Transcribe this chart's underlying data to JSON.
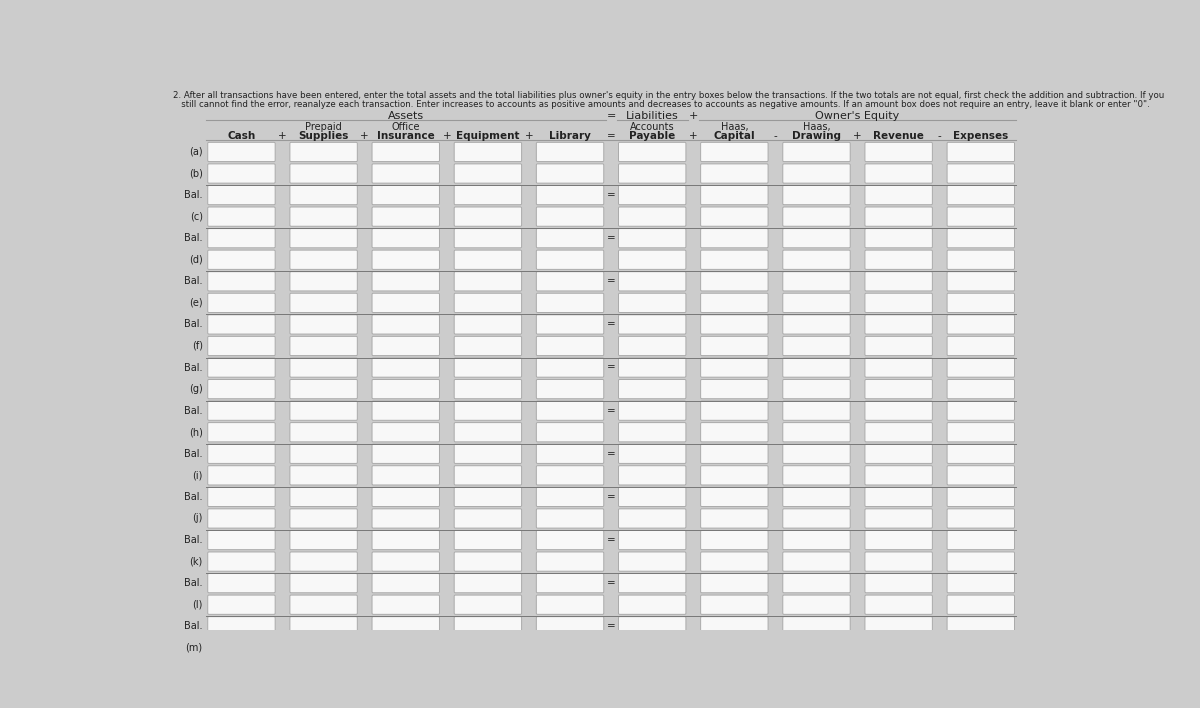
{
  "instruction_line1": "2. After all transactions have been entered, enter the total assets and the total liabilities plus owner's equity in the entry boxes below the transactions. If the two totals are not equal, first check the addition and subtraction. If you",
  "instruction_line2": "   still cannot find the error, reanalyze each transaction. Enter increases to accounts as positive amounts and decreases to accounts as negative amounts. If an amount box does not require an entry, leave it blank or enter \"0\".",
  "assets_label": "Assets",
  "liabilities_label": "Liabilities",
  "equity_label": "Owner's Equity",
  "sub_headers": [
    "",
    "Prepaid",
    "Office",
    "",
    "",
    "Accounts",
    "Haas,",
    "Haas,",
    "",
    ""
  ],
  "col_headers": [
    "Cash",
    "Supplies",
    "Insurance",
    "Equipment",
    "Library",
    "Payable",
    "Capital",
    "Drawing",
    "Revenue",
    "Expenses"
  ],
  "between_ops": [
    "+",
    "+",
    "+",
    "+",
    "=",
    "+",
    "-",
    "+",
    "-"
  ],
  "row_labels": [
    "(a)",
    "(b)",
    "Bal.",
    "(c)",
    "Bal.",
    "(d)",
    "Bal.",
    "(e)",
    "Bal.",
    "(f)",
    "Bal.",
    "(g)",
    "Bal.",
    "(h)",
    "Bal.",
    "(i)",
    "Bal.",
    "(j)",
    "Bal.",
    "(k)",
    "Bal.",
    "(l)",
    "Bal.",
    "(m)"
  ],
  "bg_color": "#cccccc",
  "box_fill": "#f8f8f8",
  "box_edge": "#aaaaaa",
  "text_color": "#222222",
  "line_color": "#999999",
  "sep_line_color": "#777777"
}
